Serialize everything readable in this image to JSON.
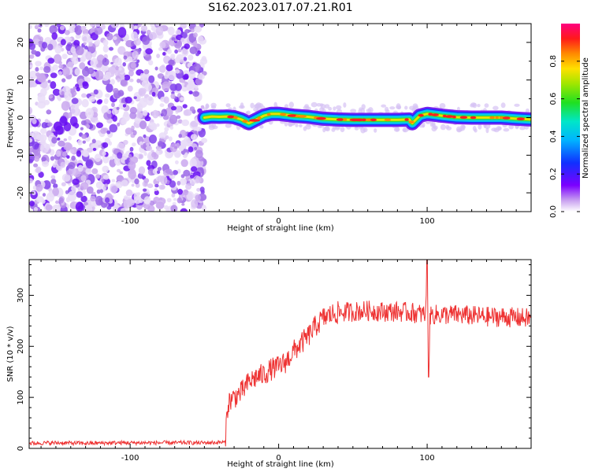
{
  "chart_data": [
    {
      "type": "heatmap",
      "title": "S162.2023.017.07.21.R01",
      "xlabel": "Height of straight line (km)",
      "ylabel": "Frequency (Hz)",
      "xlim": [
        -168,
        170
      ],
      "ylim": [
        -25,
        25
      ],
      "xticks": [
        -100,
        0,
        100
      ],
      "yticks": [
        -20,
        -10,
        0,
        10,
        20
      ],
      "colorbar": {
        "label": "Normalized spectral amplitude",
        "range": [
          0,
          1
        ],
        "ticks": [
          0.0,
          0.2,
          0.4,
          0.6,
          0.8
        ],
        "colormap": "rainbow (white-violet-blue-cyan-green-yellow-orange-red-magenta)"
      },
      "noise_region_x": [
        -168,
        -50
      ],
      "signal_region_x": [
        -50,
        170
      ],
      "signal_frequency_profile": {
        "x": [
          -50,
          -45,
          -40,
          -35,
          -30,
          -25,
          -20,
          -15,
          -10,
          -5,
          0,
          10,
          20,
          30,
          40,
          50,
          60,
          70,
          80,
          88,
          90,
          95,
          100,
          110,
          120,
          130,
          140,
          150,
          160,
          170
        ],
        "y": [
          0,
          0.3,
          0.2,
          0.3,
          0.1,
          -0.5,
          -1.5,
          -0.5,
          0.5,
          1.0,
          1.0,
          0.5,
          0.2,
          -0.3,
          -0.5,
          -0.6,
          -0.6,
          -0.6,
          -0.6,
          -0.5,
          -1.5,
          0.5,
          1.0,
          0.5,
          0.1,
          0,
          0,
          0,
          -0.3,
          -0.5
        ]
      },
      "grid": false
    },
    {
      "type": "line",
      "xlabel": "Height of straight line (km)",
      "ylabel": "SNR (10 * v/v)",
      "xlim": [
        -168,
        170
      ],
      "ylim": [
        0,
        370
      ],
      "xticks": [
        -100,
        0,
        100
      ],
      "yticks": [
        0,
        100,
        200,
        300
      ],
      "series": [
        {
          "color": "#ee3333",
          "x": [
            -168,
            -150,
            -130,
            -110,
            -90,
            -70,
            -50,
            -36,
            -35,
            -34,
            -32,
            -30,
            -25,
            -20,
            -15,
            -10,
            -5,
            0,
            5,
            10,
            15,
            20,
            25,
            30,
            35,
            40,
            50,
            60,
            70,
            80,
            90,
            99,
            100,
            101,
            102,
            110,
            120,
            130,
            140,
            150,
            160,
            170
          ],
          "y": [
            10,
            11,
            10,
            11,
            11,
            11,
            11,
            12,
            60,
            90,
            95,
            100,
            110,
            130,
            140,
            145,
            155,
            160,
            170,
            190,
            205,
            220,
            240,
            255,
            262,
            266,
            268,
            270,
            268,
            268,
            266,
            262,
            365,
            150,
            262,
            262,
            262,
            260,
            258,
            258,
            256,
            255
          ]
        }
      ],
      "annotations": [
        {
          "x": 100,
          "y": 365,
          "text": ""
        },
        {
          "x": 101,
          "y": 140,
          "text": ""
        }
      ],
      "grid": false
    }
  ]
}
